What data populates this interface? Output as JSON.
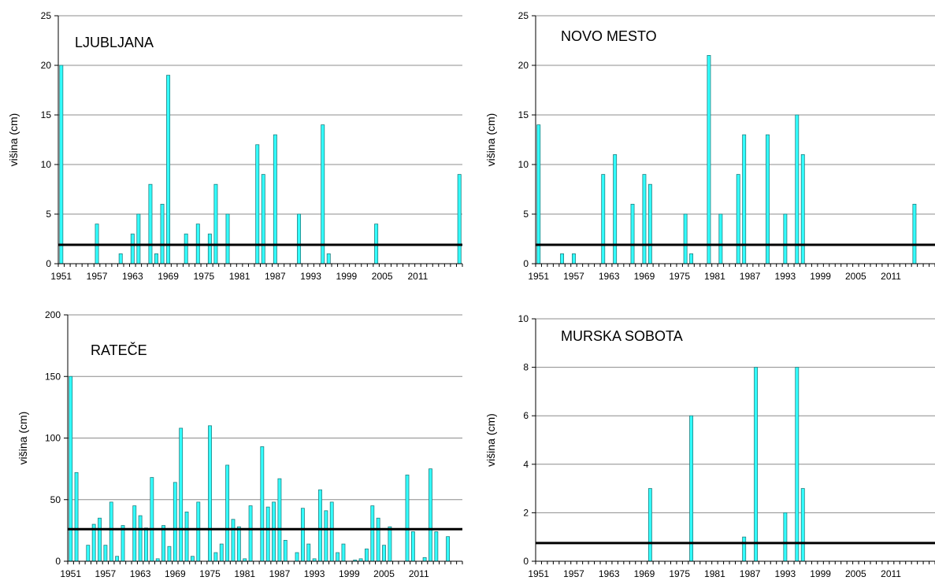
{
  "chart_data": [
    {
      "type": "bar",
      "title": "LJUBLJANA",
      "ylabel": "višina (cm)",
      "ylim": [
        0,
        25
      ],
      "yticks": [
        0,
        5,
        10,
        15,
        20,
        25
      ],
      "xtick_labels": [
        "1951",
        "1957",
        "1963",
        "1969",
        "1975",
        "1981",
        "1987",
        "1993",
        "1999",
        "2005",
        "2011"
      ],
      "x_first_year": 1951,
      "x_last_year": 2018,
      "reference_line": 1.9,
      "years": [
        1951,
        1957,
        1961,
        1963,
        1964,
        1966,
        1967,
        1968,
        1969,
        1972,
        1974,
        1976,
        1977,
        1979,
        1984,
        1985,
        1987,
        1991,
        1995,
        1996,
        2004,
        2018
      ],
      "values": [
        20,
        4,
        1,
        3,
        5,
        8,
        1,
        6,
        19,
        3,
        4,
        3,
        8,
        5,
        12,
        9,
        13,
        5,
        14,
        1,
        4,
        9
      ],
      "bar_color": "#33ffff"
    },
    {
      "type": "bar",
      "title": "NOVO MESTO",
      "ylabel": "višina (cm)",
      "ylim": [
        0,
        25
      ],
      "yticks": [
        0,
        5,
        10,
        15,
        20,
        25
      ],
      "xtick_labels": [
        "1951",
        "1957",
        "1963",
        "1969",
        "1975",
        "1981",
        "1987",
        "1993",
        "1999",
        "2005",
        "2011"
      ],
      "x_first_year": 1951,
      "x_last_year": 2018,
      "reference_line": 1.9,
      "years": [
        1951,
        1955,
        1957,
        1962,
        1964,
        1967,
        1969,
        1970,
        1976,
        1977,
        1980,
        1982,
        1985,
        1986,
        1990,
        1993,
        1995,
        1996,
        2015
      ],
      "values": [
        14,
        1,
        1,
        9,
        11,
        6,
        9,
        8,
        5,
        1,
        21,
        5,
        9,
        13,
        13,
        5,
        15,
        11,
        6
      ],
      "bar_color": "#33ffff"
    },
    {
      "type": "bar",
      "title": "RATEČE",
      "ylabel": "višina (cm)",
      "ylim": [
        0,
        200
      ],
      "yticks": [
        0,
        50,
        100,
        150,
        200
      ],
      "xtick_labels": [
        "1951",
        "1957",
        "1963",
        "1969",
        "1975",
        "1981",
        "1987",
        "1993",
        "1999",
        "2005",
        "2011"
      ],
      "x_first_year": 1951,
      "x_last_year": 2018,
      "reference_line": 26,
      "years": [
        1951,
        1952,
        1954,
        1955,
        1956,
        1957,
        1958,
        1959,
        1960,
        1962,
        1963,
        1964,
        1965,
        1966,
        1967,
        1968,
        1969,
        1970,
        1971,
        1972,
        1973,
        1975,
        1976,
        1977,
        1978,
        1979,
        1980,
        1981,
        1982,
        1984,
        1985,
        1986,
        1987,
        1988,
        1990,
        1991,
        1992,
        1993,
        1994,
        1995,
        1996,
        1997,
        1998,
        2000,
        2001,
        2002,
        2003,
        2004,
        2005,
        2006,
        2009,
        2010,
        2012,
        2013,
        2014,
        2016
      ],
      "values": [
        150,
        72,
        13,
        30,
        35,
        13,
        48,
        4,
        29,
        45,
        37,
        27,
        68,
        2,
        29,
        12,
        64,
        108,
        40,
        4,
        48,
        110,
        7,
        14,
        78,
        34,
        28,
        2,
        45,
        93,
        44,
        48,
        67,
        17,
        7,
        43,
        14,
        2,
        58,
        41,
        48,
        7,
        14,
        1,
        2,
        10,
        45,
        35,
        13,
        28,
        70,
        24,
        3,
        75,
        24,
        20
      ],
      "bar_color": "#33ffff"
    },
    {
      "type": "bar",
      "title": "MURSKA SOBOTA",
      "ylabel": "višina (cm)",
      "ylim": [
        0,
        10
      ],
      "yticks": [
        0,
        2,
        4,
        6,
        8,
        10
      ],
      "xtick_labels": [
        "1951",
        "1957",
        "1963",
        "1969",
        "1975",
        "1981",
        "1987",
        "1993",
        "1999",
        "2005",
        "2011"
      ],
      "x_first_year": 1951,
      "x_last_year": 2018,
      "reference_line": 0.75,
      "years": [
        1970,
        1977,
        1986,
        1988,
        1993,
        1995,
        1996
      ],
      "values": [
        3,
        6,
        1,
        8,
        2,
        8,
        3
      ],
      "bar_color": "#33ffff"
    }
  ]
}
